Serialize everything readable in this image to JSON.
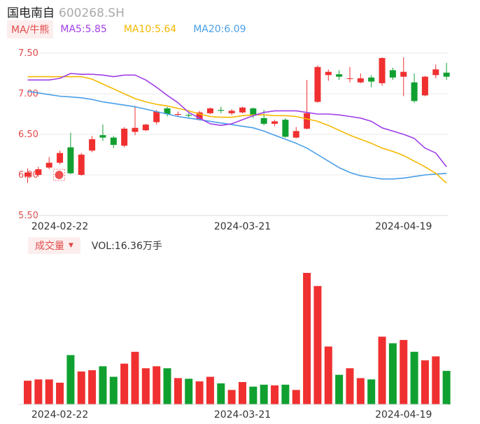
{
  "header": {
    "name": "国电南自",
    "code": "600268.SH"
  },
  "ma": {
    "selector_label": "MA/牛熊",
    "ma5_label": "MA5:5.85",
    "ma10_label": "MA10:5.64",
    "ma20_label": "MA20:6.09",
    "colors": {
      "ma5": "#a040e8",
      "ma10": "#f5b800",
      "ma20": "#4a9ee8"
    }
  },
  "volume": {
    "selector_label": "成交量",
    "value_label": "VOL:16.36万手"
  },
  "colors": {
    "up": "#f03030",
    "down": "#10a030",
    "grid": "#e8e8e8"
  },
  "chart_data": {
    "type": "candlestick",
    "y_ticks": [
      "7.50",
      "7.00",
      "6.50",
      "6.00",
      "5.50"
    ],
    "ylim": [
      5.5,
      7.5
    ],
    "x_labels": [
      "2024-02-22",
      "2024-03-21",
      "2024-04-19"
    ],
    "candles": [
      {
        "o": 5.98,
        "c": 6.03,
        "h": 6.08,
        "l": 5.9
      },
      {
        "o": 6.0,
        "c": 6.07,
        "h": 6.1,
        "l": 5.98
      },
      {
        "o": 6.09,
        "c": 6.15,
        "h": 6.22,
        "l": 6.07
      },
      {
        "o": 6.15,
        "c": 6.27,
        "h": 6.3,
        "l": 6.13
      },
      {
        "o": 6.34,
        "c": 6.02,
        "h": 6.52,
        "l": 6.01
      },
      {
        "o": 6.0,
        "c": 6.25,
        "h": 6.27,
        "l": 5.99
      },
      {
        "o": 6.3,
        "c": 6.44,
        "h": 6.48,
        "l": 6.28
      },
      {
        "o": 6.49,
        "c": 6.46,
        "h": 6.62,
        "l": 6.42
      },
      {
        "o": 6.46,
        "c": 6.37,
        "h": 6.48,
        "l": 6.33
      },
      {
        "o": 6.36,
        "c": 6.57,
        "h": 6.59,
        "l": 6.34
      },
      {
        "o": 6.53,
        "c": 6.58,
        "h": 6.85,
        "l": 6.49
      },
      {
        "o": 6.55,
        "c": 6.62,
        "h": 6.63,
        "l": 6.54
      },
      {
        "o": 6.65,
        "c": 6.78,
        "h": 6.8,
        "l": 6.62
      },
      {
        "o": 6.82,
        "c": 6.75,
        "h": 6.84,
        "l": 6.72
      },
      {
        "o": 6.74,
        "c": 6.75,
        "h": 6.78,
        "l": 6.72
      },
      {
        "o": 6.74,
        "c": 6.73,
        "h": 6.76,
        "l": 6.7
      },
      {
        "o": 6.69,
        "c": 6.77,
        "h": 6.79,
        "l": 6.67
      },
      {
        "o": 6.76,
        "c": 6.82,
        "h": 6.83,
        "l": 6.75
      },
      {
        "o": 6.8,
        "c": 6.79,
        "h": 6.84,
        "l": 6.76
      },
      {
        "o": 6.76,
        "c": 6.79,
        "h": 6.81,
        "l": 6.74
      },
      {
        "o": 6.77,
        "c": 6.83,
        "h": 6.84,
        "l": 6.76
      },
      {
        "o": 6.82,
        "c": 6.73,
        "h": 6.83,
        "l": 6.7
      },
      {
        "o": 6.7,
        "c": 6.63,
        "h": 6.8,
        "l": 6.61
      },
      {
        "o": 6.63,
        "c": 6.66,
        "h": 6.68,
        "l": 6.6
      },
      {
        "o": 6.68,
        "c": 6.47,
        "h": 6.7,
        "l": 6.46
      },
      {
        "o": 6.46,
        "c": 6.54,
        "h": 6.59,
        "l": 6.45
      },
      {
        "o": 6.57,
        "c": 6.76,
        "h": 7.17,
        "l": 6.56
      },
      {
        "o": 6.9,
        "c": 7.33,
        "h": 7.35,
        "l": 6.89
      },
      {
        "o": 7.23,
        "c": 7.27,
        "h": 7.3,
        "l": 7.16
      },
      {
        "o": 7.24,
        "c": 7.21,
        "h": 7.29,
        "l": 7.17
      },
      {
        "o": 7.19,
        "c": 7.19,
        "h": 7.33,
        "l": 7.14
      },
      {
        "o": 7.14,
        "c": 7.19,
        "h": 7.25,
        "l": 7.13
      },
      {
        "o": 7.2,
        "c": 7.15,
        "h": 7.23,
        "l": 7.08
      },
      {
        "o": 7.13,
        "c": 7.44,
        "h": 7.45,
        "l": 7.1
      },
      {
        "o": 7.29,
        "c": 7.2,
        "h": 7.32,
        "l": 7.17
      },
      {
        "o": 7.21,
        "c": 7.27,
        "h": 7.45,
        "l": 6.97
      },
      {
        "o": 7.14,
        "c": 6.91,
        "h": 7.25,
        "l": 6.89
      },
      {
        "o": 6.98,
        "c": 7.21,
        "h": 7.22,
        "l": 6.97
      },
      {
        "o": 7.23,
        "c": 7.3,
        "h": 7.36,
        "l": 7.19
      },
      {
        "o": 7.26,
        "c": 7.21,
        "h": 7.38,
        "l": 7.17
      }
    ],
    "ma5": [
      7.17,
      7.17,
      7.17,
      7.19,
      7.25,
      7.24,
      7.24,
      7.23,
      7.21,
      7.23,
      7.23,
      7.17,
      7.08,
      6.98,
      6.89,
      6.77,
      6.7,
      6.63,
      6.61,
      6.63,
      6.68,
      6.73,
      6.77,
      6.79,
      6.79,
      6.79,
      6.77,
      6.75,
      6.75,
      6.74,
      6.72,
      6.7,
      6.66,
      6.58,
      6.54,
      6.5,
      6.45,
      6.33,
      6.27,
      6.1
    ],
    "ma10": [
      7.21,
      7.21,
      7.21,
      7.21,
      7.21,
      7.21,
      7.18,
      7.12,
      7.06,
      7.0,
      6.94,
      6.9,
      6.87,
      6.85,
      6.82,
      6.79,
      6.75,
      6.72,
      6.71,
      6.71,
      6.73,
      6.74,
      6.74,
      6.73,
      6.73,
      6.72,
      6.69,
      6.66,
      6.61,
      6.55,
      6.49,
      6.44,
      6.39,
      6.33,
      6.29,
      6.24,
      6.17,
      6.1,
      6.02,
      5.9
    ],
    "ma20": [
      7.03,
      7.01,
      6.99,
      6.97,
      6.96,
      6.95,
      6.93,
      6.9,
      6.88,
      6.86,
      6.84,
      6.81,
      6.78,
      6.75,
      6.72,
      6.7,
      6.68,
      6.66,
      6.64,
      6.62,
      6.6,
      6.58,
      6.54,
      6.49,
      6.44,
      6.39,
      6.33,
      6.25,
      6.17,
      6.09,
      6.03,
      5.99,
      5.97,
      5.95,
      5.95,
      5.96,
      5.98,
      6.0,
      6.01,
      6.02
    ],
    "volume": [
      0.36,
      0.38,
      0.38,
      0.33,
      0.75,
      0.5,
      0.52,
      0.58,
      0.42,
      0.62,
      0.8,
      0.55,
      0.58,
      0.55,
      0.4,
      0.39,
      0.35,
      0.42,
      0.32,
      0.22,
      0.34,
      0.27,
      0.3,
      0.29,
      0.3,
      0.22,
      2.0,
      1.8,
      0.88,
      0.45,
      0.55,
      0.4,
      0.38,
      1.03,
      0.93,
      0.98,
      0.8,
      0.67,
      0.73,
      0.51
    ]
  }
}
